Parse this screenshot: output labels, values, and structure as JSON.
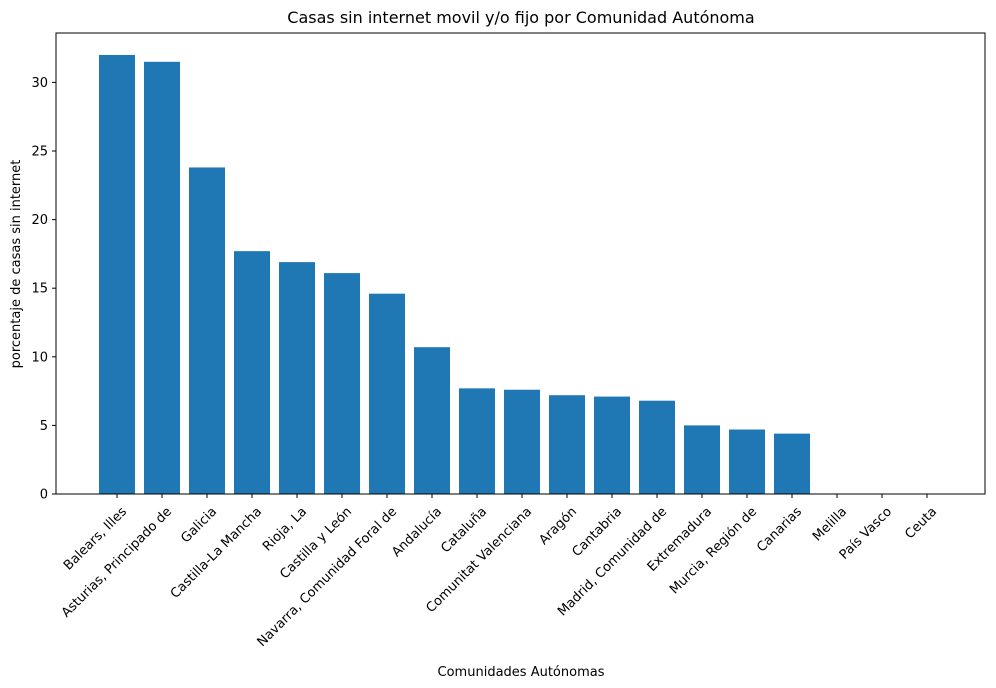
{
  "chart_data": {
    "type": "bar",
    "title": "Casas sin internet movil y/o fijo por Comunidad Autónoma",
    "xlabel": "Comunidades Autónomas",
    "ylabel": "porcentaje de casas sin internet",
    "categories": [
      "Balears, Illes",
      "Asturias, Principado de",
      "Galicia",
      "Castilla-La Mancha",
      "Rioja, La",
      "Castilla y León",
      "Navarra, Comunidad Foral de",
      "Andalucía",
      "Cataluña",
      "Comunitat Valenciana",
      "Aragón",
      "Cantabria",
      "Madrid, Comunidad de",
      "Extremadura",
      "Murcia, Región de",
      "Canarias",
      "Melilla",
      "País Vasco",
      "Ceuta"
    ],
    "values": [
      32.0,
      31.5,
      23.8,
      17.7,
      16.9,
      16.1,
      14.6,
      10.7,
      7.7,
      7.6,
      7.2,
      7.1,
      6.8,
      5.0,
      4.7,
      4.4,
      0,
      0,
      0
    ],
    "yticks": [
      0,
      5,
      10,
      15,
      20,
      25,
      30
    ],
    "ylim": [
      0,
      33.6
    ],
    "grid": false,
    "bar_color": "#1f77b4"
  }
}
